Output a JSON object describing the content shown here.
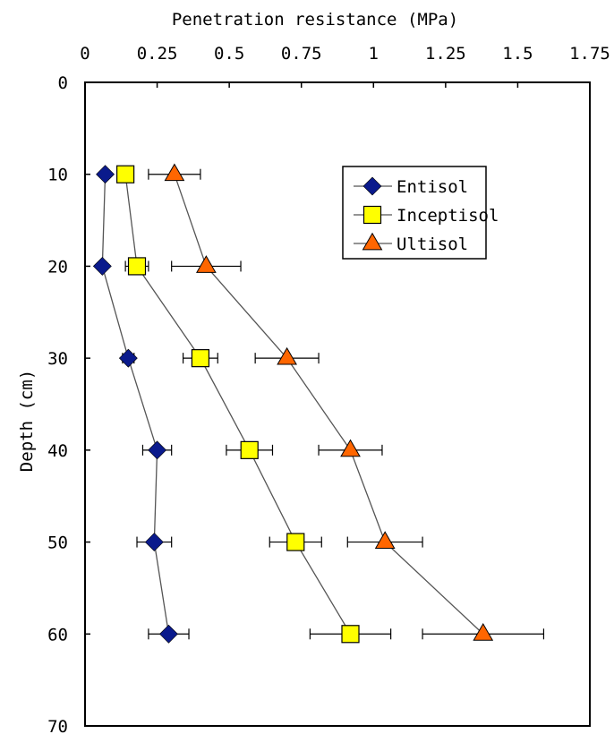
{
  "chart_data": {
    "type": "scatter",
    "xlabel": "Penetration resistance (MPa)",
    "ylabel": "Depth (cm)",
    "xlim": [
      0,
      1.75
    ],
    "ylim": [
      0,
      70
    ],
    "x_axis_position": "top",
    "y_axis_inverted": true,
    "x_ticks": [
      "0",
      "0.25",
      "0.5",
      "0.75",
      "1",
      "1.25",
      "1.5",
      "1.75"
    ],
    "y_ticks": [
      "0",
      "10",
      "20",
      "30",
      "40",
      "50",
      "60",
      "70"
    ],
    "grid": false,
    "legend_position": "top-right",
    "series": [
      {
        "name": "Entisol",
        "marker": "diamond",
        "color": "#0A1A8C",
        "points": [
          {
            "x": 0.07,
            "y": 10
          },
          {
            "x": 0.06,
            "y": 20
          },
          {
            "x": 0.15,
            "y": 30
          },
          {
            "x": 0.25,
            "y": 40
          },
          {
            "x": 0.24,
            "y": 50
          },
          {
            "x": 0.29,
            "y": 60
          }
        ],
        "errors": [
          0,
          0,
          0.02,
          0.05,
          0.06,
          0.07
        ]
      },
      {
        "name": "Inceptisol",
        "marker": "square",
        "color": "#FFFF00",
        "points": [
          {
            "x": 0.14,
            "y": 10
          },
          {
            "x": 0.18,
            "y": 20
          },
          {
            "x": 0.4,
            "y": 30
          },
          {
            "x": 0.57,
            "y": 40
          },
          {
            "x": 0.73,
            "y": 50
          },
          {
            "x": 0.92,
            "y": 60
          }
        ],
        "errors": [
          0,
          0.04,
          0.06,
          0.08,
          0.09,
          0.14
        ]
      },
      {
        "name": "Ultisol",
        "marker": "triangle",
        "color": "#FF6600",
        "points": [
          {
            "x": 0.31,
            "y": 10
          },
          {
            "x": 0.42,
            "y": 20
          },
          {
            "x": 0.7,
            "y": 30
          },
          {
            "x": 0.92,
            "y": 40
          },
          {
            "x": 1.04,
            "y": 50
          },
          {
            "x": 1.38,
            "y": 60
          }
        ],
        "errors": [
          0.09,
          0.12,
          0.11,
          0.11,
          0.13,
          0.21
        ]
      }
    ]
  }
}
